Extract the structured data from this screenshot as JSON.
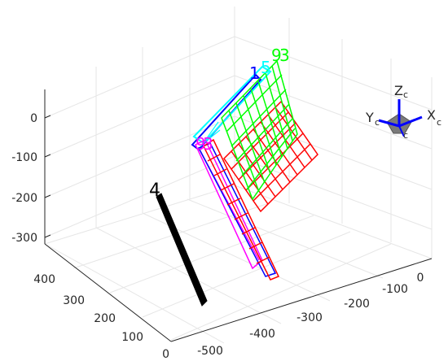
{
  "chart_data": {
    "type": "3d-extrinsics",
    "axes": {
      "z": {
        "ticks": [
          0,
          -100,
          -200,
          -300
        ]
      },
      "y": {
        "ticks": [
          400,
          300,
          200,
          100,
          0
        ]
      },
      "x": {
        "ticks": [
          -500,
          -400,
          -300,
          -200,
          -100,
          0
        ]
      }
    },
    "grid": true,
    "camera_axes": {
      "x": "X",
      "y": "Y",
      "z": "Z",
      "subscript": "c",
      "color": "#0000ff",
      "body_color": "#808080"
    },
    "boards": [
      {
        "label": "4",
        "color": "#000000"
      },
      {
        "label": "1",
        "color": "#0000ff"
      },
      {
        "label": "5",
        "color": "#00ffff"
      },
      {
        "label": "9",
        "color": "#00ff00"
      },
      {
        "label": "3",
        "color": "#00ff00"
      },
      {
        "label": "9",
        "color": "#ff00ff"
      },
      {
        "label": "3",
        "color": "#ff00ff"
      }
    ],
    "colors": {
      "red": "#ff0000",
      "green": "#00ff00",
      "blue": "#0000ff",
      "cyan": "#00ffff",
      "magenta": "#ff00ff",
      "black": "#000000"
    }
  }
}
